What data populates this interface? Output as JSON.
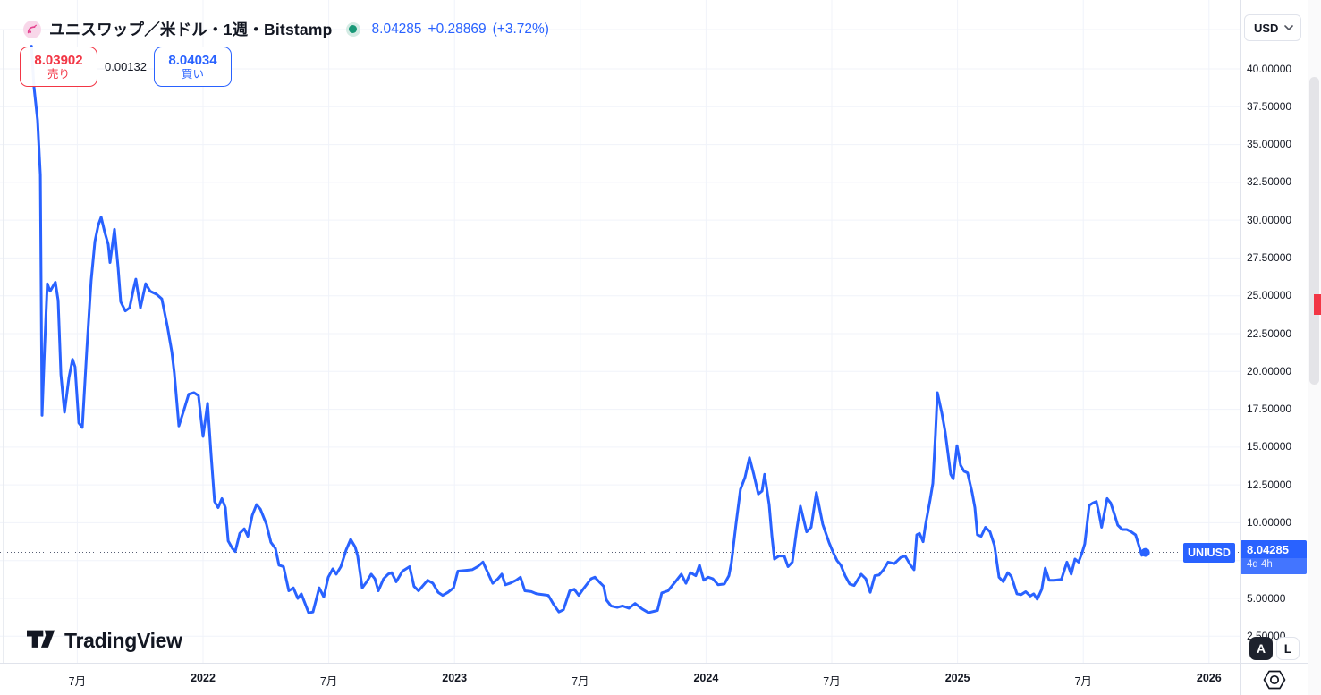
{
  "header": {
    "symbol_title": "ユニスワップ／米ドル・1週・Bitstamp",
    "last_price": "8.04285",
    "change": "+0.28869",
    "change_pct": "(+3.72%)",
    "sell": {
      "price": "8.03902",
      "label": "売り"
    },
    "spread": "0.00132",
    "buy": {
      "price": "8.04034",
      "label": "買い"
    }
  },
  "price_scale": {
    "currency_button": "USD",
    "series_label": "UNIUSD",
    "current_price_label": {
      "price": "8.04285",
      "countdown": "4d 4h"
    },
    "ticks": [
      {
        "label": "40.00000",
        "value": 40
      },
      {
        "label": "37.50000",
        "value": 37.5
      },
      {
        "label": "35.00000",
        "value": 35
      },
      {
        "label": "32.50000",
        "value": 32.5
      },
      {
        "label": "30.00000",
        "value": 30
      },
      {
        "label": "27.50000",
        "value": 27.5
      },
      {
        "label": "25.00000",
        "value": 25
      },
      {
        "label": "22.50000",
        "value": 22.5
      },
      {
        "label": "20.00000",
        "value": 20
      },
      {
        "label": "17.50000",
        "value": 17.5
      },
      {
        "label": "15.00000",
        "value": 15
      },
      {
        "label": "12.50000",
        "value": 12.5
      },
      {
        "label": "10.00000",
        "value": 10
      },
      {
        "label": "7.50000",
        "value": 7.5
      },
      {
        "label": "5.00000",
        "value": 5
      },
      {
        "label": "2.50000",
        "value": 2.5
      }
    ]
  },
  "time_scale": {
    "ticks": [
      {
        "label": "7月",
        "t": 2021.5,
        "major": false
      },
      {
        "label": "2022",
        "t": 2022,
        "major": true
      },
      {
        "label": "7月",
        "t": 2022.5,
        "major": false
      },
      {
        "label": "2023",
        "t": 2023,
        "major": true
      },
      {
        "label": "7月",
        "t": 2023.5,
        "major": false
      },
      {
        "label": "2024",
        "t": 2024,
        "major": true
      },
      {
        "label": "7月",
        "t": 2024.5,
        "major": false
      },
      {
        "label": "2025",
        "t": 2025,
        "major": true
      },
      {
        "label": "7月",
        "t": 2025.5,
        "major": false
      },
      {
        "label": "2026",
        "t": 2026,
        "major": true
      }
    ]
  },
  "corner_buttons": {
    "auto_label": "A",
    "log_label": "L"
  },
  "footer": {
    "brand": "TradingView"
  },
  "colors": {
    "accent_blue": "#2962ff",
    "sell_red": "#f23645",
    "market_open_green": "#189877",
    "grid": "#f0f3fa",
    "text": "#131722"
  },
  "chart_data": {
    "type": "line",
    "title": "ユニスワップ／米ドル・1週・Bitstamp",
    "symbol": "UNIUSD",
    "interval": "1週",
    "exchange": "Bitstamp",
    "x_unit": "decimal_year",
    "xlim": [
      2021.19,
      2026.12
    ],
    "ylim": [
      0.7,
      44.6
    ],
    "grid": true,
    "legend_position": "top-left",
    "line_color": "#2962ff",
    "last_price": 8.04285,
    "points": [
      [
        2021.318,
        41.5
      ],
      [
        2021.328,
        38.8
      ],
      [
        2021.342,
        36.6
      ],
      [
        2021.353,
        33.0
      ],
      [
        2021.36,
        17.1
      ],
      [
        2021.37,
        21.5
      ],
      [
        2021.381,
        25.8
      ],
      [
        2021.392,
        25.3
      ],
      [
        2021.413,
        25.9
      ],
      [
        2021.424,
        24.7
      ],
      [
        2021.435,
        19.8
      ],
      [
        2021.449,
        17.3
      ],
      [
        2021.467,
        19.6
      ],
      [
        2021.481,
        20.8
      ],
      [
        2021.491,
        20.3
      ],
      [
        2021.506,
        16.6
      ],
      [
        2021.52,
        16.3
      ],
      [
        2021.538,
        21.5
      ],
      [
        2021.555,
        26.0
      ],
      [
        2021.57,
        28.6
      ],
      [
        2021.584,
        29.7
      ],
      [
        2021.595,
        30.2
      ],
      [
        2021.609,
        29.2
      ],
      [
        2021.623,
        28.4
      ],
      [
        2021.63,
        27.2
      ],
      [
        2021.648,
        29.4
      ],
      [
        2021.662,
        26.9
      ],
      [
        2021.673,
        24.6
      ],
      [
        2021.691,
        24.0
      ],
      [
        2021.708,
        24.2
      ],
      [
        2021.723,
        25.4
      ],
      [
        2021.733,
        26.1
      ],
      [
        2021.751,
        24.2
      ],
      [
        2021.772,
        25.8
      ],
      [
        2021.79,
        25.3
      ],
      [
        2021.815,
        25.1
      ],
      [
        2021.836,
        24.8
      ],
      [
        2021.858,
        23.0
      ],
      [
        2021.876,
        21.3
      ],
      [
        2021.886,
        19.9
      ],
      [
        2021.904,
        16.4
      ],
      [
        2021.925,
        17.5
      ],
      [
        2021.943,
        18.5
      ],
      [
        2021.964,
        18.6
      ],
      [
        2021.982,
        18.4
      ],
      [
        2022.0,
        15.7
      ],
      [
        2022.018,
        17.9
      ],
      [
        2022.032,
        14.5
      ],
      [
        2022.046,
        11.4
      ],
      [
        2022.06,
        11.0
      ],
      [
        2022.075,
        11.6
      ],
      [
        2022.089,
        11.0
      ],
      [
        2022.1,
        8.8
      ],
      [
        2022.117,
        8.3
      ],
      [
        2022.128,
        8.1
      ],
      [
        2022.146,
        9.3
      ],
      [
        2022.164,
        9.6
      ],
      [
        2022.178,
        9.1
      ],
      [
        2022.196,
        10.5
      ],
      [
        2022.213,
        11.2
      ],
      [
        2022.228,
        10.9
      ],
      [
        2022.252,
        9.9
      ],
      [
        2022.27,
        8.7
      ],
      [
        2022.288,
        8.3
      ],
      [
        2022.302,
        7.2
      ],
      [
        2022.32,
        7.1
      ],
      [
        2022.341,
        5.5
      ],
      [
        2022.359,
        5.7
      ],
      [
        2022.377,
        5.0
      ],
      [
        2022.391,
        5.3
      ],
      [
        2022.42,
        4.05
      ],
      [
        2022.437,
        4.1
      ],
      [
        2022.462,
        5.7
      ],
      [
        2022.48,
        5.1
      ],
      [
        2022.498,
        6.4
      ],
      [
        2022.516,
        6.95
      ],
      [
        2022.53,
        6.6
      ],
      [
        2022.548,
        7.1
      ],
      [
        2022.569,
        8.2
      ],
      [
        2022.587,
        8.9
      ],
      [
        2022.605,
        8.4
      ],
      [
        2022.615,
        7.8
      ],
      [
        2022.633,
        5.7
      ],
      [
        2022.651,
        6.1
      ],
      [
        2022.669,
        6.6
      ],
      [
        2022.683,
        6.3
      ],
      [
        2022.697,
        5.5
      ],
      [
        2022.718,
        6.3
      ],
      [
        2022.736,
        6.6
      ],
      [
        2022.75,
        6.7
      ],
      [
        2022.768,
        6.1
      ],
      [
        2022.793,
        6.8
      ],
      [
        2022.821,
        7.1
      ],
      [
        2022.839,
        5.8
      ],
      [
        2022.857,
        5.5
      ],
      [
        2022.893,
        6.2
      ],
      [
        2022.914,
        6.0
      ],
      [
        2022.935,
        5.4
      ],
      [
        2022.953,
        5.2
      ],
      [
        2022.974,
        5.4
      ],
      [
        2022.996,
        5.7
      ],
      [
        2023.013,
        6.8
      ],
      [
        2023.042,
        6.85
      ],
      [
        2023.07,
        6.9
      ],
      [
        2023.092,
        7.1
      ],
      [
        2023.113,
        7.4
      ],
      [
        2023.138,
        6.5
      ],
      [
        2023.152,
        6.0
      ],
      [
        2023.173,
        6.3
      ],
      [
        2023.188,
        6.6
      ],
      [
        2023.202,
        5.9
      ],
      [
        2023.22,
        6.0
      ],
      [
        2023.245,
        6.2
      ],
      [
        2023.262,
        6.4
      ],
      [
        2023.28,
        5.5
      ],
      [
        2023.305,
        5.45
      ],
      [
        2023.326,
        5.3
      ],
      [
        2023.351,
        5.25
      ],
      [
        2023.373,
        5.2
      ],
      [
        2023.394,
        4.6
      ],
      [
        2023.415,
        4.1
      ],
      [
        2023.433,
        4.25
      ],
      [
        2023.458,
        5.5
      ],
      [
        2023.476,
        5.6
      ],
      [
        2023.494,
        5.2
      ],
      [
        2023.511,
        5.6
      ],
      [
        2023.529,
        6.0
      ],
      [
        2023.543,
        6.3
      ],
      [
        2023.558,
        6.4
      ],
      [
        2023.575,
        6.1
      ],
      [
        2023.593,
        5.8
      ],
      [
        2023.604,
        4.9
      ],
      [
        2023.622,
        4.5
      ],
      [
        2023.647,
        4.4
      ],
      [
        2023.668,
        4.5
      ],
      [
        2023.693,
        4.35
      ],
      [
        2023.718,
        4.66
      ],
      [
        2023.746,
        4.3
      ],
      [
        2023.771,
        4.06
      ],
      [
        2023.807,
        4.2
      ],
      [
        2023.824,
        5.36
      ],
      [
        2023.849,
        5.5
      ],
      [
        2023.878,
        6.1
      ],
      [
        2023.902,
        6.6
      ],
      [
        2023.92,
        6.0
      ],
      [
        2023.938,
        6.7
      ],
      [
        2023.959,
        6.5
      ],
      [
        2023.974,
        7.2
      ],
      [
        2023.991,
        6.2
      ],
      [
        2024.009,
        6.4
      ],
      [
        2024.027,
        6.3
      ],
      [
        2024.048,
        5.9
      ],
      [
        2024.073,
        5.95
      ],
      [
        2024.091,
        6.5
      ],
      [
        2024.101,
        7.35
      ],
      [
        2024.119,
        9.9
      ],
      [
        2024.137,
        12.2
      ],
      [
        2024.155,
        13.0
      ],
      [
        2024.173,
        14.3
      ],
      [
        2024.19,
        13.2
      ],
      [
        2024.208,
        11.9
      ],
      [
        2024.223,
        12.1
      ],
      [
        2024.233,
        13.2
      ],
      [
        2024.251,
        11.2
      ],
      [
        2024.262,
        9.1
      ],
      [
        2024.272,
        7.6
      ],
      [
        2024.29,
        7.8
      ],
      [
        2024.311,
        7.8
      ],
      [
        2024.326,
        7.1
      ],
      [
        2024.343,
        7.4
      ],
      [
        2024.361,
        9.6
      ],
      [
        2024.375,
        11.1
      ],
      [
        2024.4,
        9.4
      ],
      [
        2024.418,
        9.7
      ],
      [
        2024.439,
        12.0
      ],
      [
        2024.464,
        9.9
      ],
      [
        2024.489,
        8.7
      ],
      [
        2024.504,
        8.1
      ],
      [
        2024.521,
        7.5
      ],
      [
        2024.536,
        7.2
      ],
      [
        2024.553,
        6.5
      ],
      [
        2024.571,
        5.95
      ],
      [
        2024.589,
        5.85
      ],
      [
        2024.617,
        6.6
      ],
      [
        2024.635,
        6.3
      ],
      [
        2024.653,
        5.4
      ],
      [
        2024.671,
        6.5
      ],
      [
        2024.688,
        6.55
      ],
      [
        2024.706,
        6.9
      ],
      [
        2024.724,
        7.4
      ],
      [
        2024.749,
        7.3
      ],
      [
        2024.774,
        7.7
      ],
      [
        2024.792,
        7.8
      ],
      [
        2024.813,
        7.2
      ],
      [
        2024.827,
        6.9
      ],
      [
        2024.838,
        9.2
      ],
      [
        2024.849,
        9.3
      ],
      [
        2024.863,
        8.75
      ],
      [
        2024.873,
        9.9
      ],
      [
        2024.891,
        11.5
      ],
      [
        2024.902,
        12.6
      ],
      [
        2024.912,
        15.8
      ],
      [
        2024.92,
        18.6
      ],
      [
        2024.937,
        17.3
      ],
      [
        2024.951,
        16.0
      ],
      [
        2024.962,
        14.6
      ],
      [
        2024.973,
        13.2
      ],
      [
        2024.983,
        12.9
      ],
      [
        2024.998,
        15.1
      ],
      [
        2025.012,
        13.8
      ],
      [
        2025.026,
        13.4
      ],
      [
        2025.04,
        13.3
      ],
      [
        2025.058,
        12.0
      ],
      [
        2025.069,
        11.0
      ],
      [
        2025.079,
        9.2
      ],
      [
        2025.094,
        9.1
      ],
      [
        2025.111,
        9.7
      ],
      [
        2025.129,
        9.4
      ],
      [
        2025.147,
        8.5
      ],
      [
        2025.165,
        6.4
      ],
      [
        2025.182,
        6.1
      ],
      [
        2025.2,
        6.7
      ],
      [
        2025.214,
        6.45
      ],
      [
        2025.236,
        5.3
      ],
      [
        2025.253,
        5.25
      ],
      [
        2025.271,
        5.44
      ],
      [
        2025.289,
        5.16
      ],
      [
        2025.303,
        5.3
      ],
      [
        2025.317,
        4.94
      ],
      [
        2025.335,
        5.6
      ],
      [
        2025.349,
        7.0
      ],
      [
        2025.364,
        6.2
      ],
      [
        2025.385,
        6.2
      ],
      [
        2025.413,
        6.25
      ],
      [
        2025.435,
        7.4
      ],
      [
        2025.452,
        6.6
      ],
      [
        2025.467,
        7.6
      ],
      [
        2025.481,
        7.4
      ],
      [
        2025.495,
        8.0
      ],
      [
        2025.506,
        8.6
      ],
      [
        2025.524,
        11.15
      ],
      [
        2025.538,
        11.3
      ],
      [
        2025.552,
        11.4
      ],
      [
        2025.563,
        10.6
      ],
      [
        2025.573,
        9.7
      ],
      [
        2025.595,
        11.6
      ],
      [
        2025.609,
        11.3
      ],
      [
        2025.627,
        10.4
      ],
      [
        2025.637,
        9.85
      ],
      [
        2025.655,
        9.55
      ],
      [
        2025.673,
        9.55
      ],
      [
        2025.691,
        9.4
      ],
      [
        2025.708,
        9.2
      ],
      [
        2025.723,
        8.4
      ],
      [
        2025.733,
        7.85
      ],
      [
        2025.747,
        8.04
      ]
    ]
  }
}
